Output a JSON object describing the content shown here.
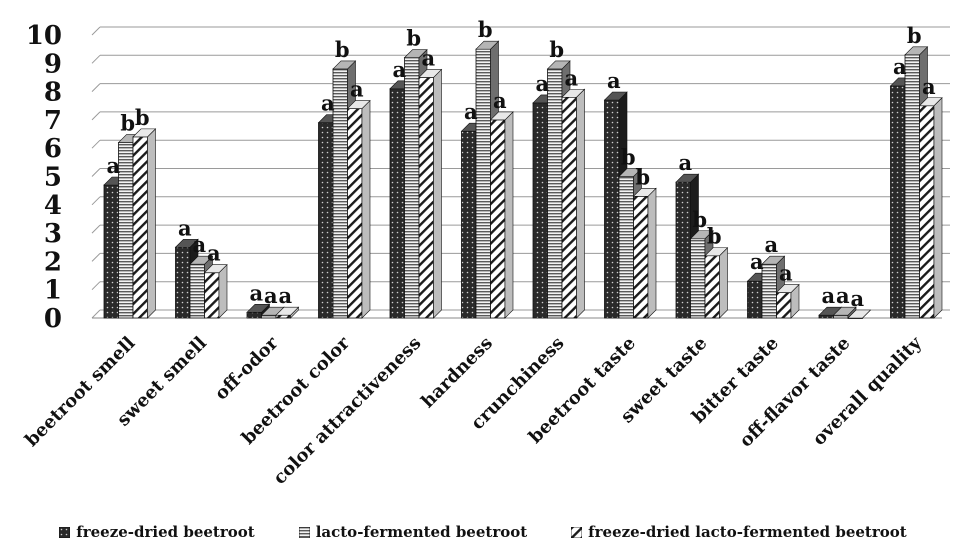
{
  "chart_data": {
    "type": "bar",
    "categories": [
      "beetroot smell",
      "sweet smell",
      "off-odor",
      "beetroot color",
      "color attractiveness",
      "hardness",
      "crunchiness",
      "beetroot taste",
      "sweet taste",
      "bitter taste",
      "off-flavor taste",
      "overall quality"
    ],
    "series": [
      {
        "name": "freeze-dried beetroot",
        "values": [
          4.7,
          2.5,
          0.2,
          6.9,
          8.1,
          6.6,
          7.6,
          7.7,
          4.8,
          1.3,
          0.1,
          8.2
        ],
        "letters": [
          "a",
          "a",
          "a",
          "a",
          "a",
          "a",
          "a",
          "a",
          "a",
          "a",
          "a",
          "a"
        ]
      },
      {
        "name": "lacto-fermented beetroot",
        "values": [
          6.2,
          1.9,
          0.1,
          8.8,
          9.2,
          9.5,
          8.8,
          5.0,
          2.8,
          1.9,
          0.1,
          9.3
        ],
        "letters": [
          "b",
          "a",
          "a",
          "b",
          "b",
          "b",
          "b",
          "b",
          "b",
          "a",
          "a",
          "b"
        ]
      },
      {
        "name": "freeze-dried lacto-fermented beetroot",
        "values": [
          6.4,
          1.6,
          0.1,
          7.4,
          8.5,
          7.0,
          7.8,
          4.3,
          2.2,
          0.9,
          0.0,
          7.5
        ],
        "letters": [
          "b",
          "a",
          "a",
          "a",
          "a",
          "a",
          "a",
          "b",
          "b",
          "a",
          "a",
          "a"
        ]
      }
    ],
    "title": "",
    "xlabel": "",
    "ylabel": "",
    "ylim": [
      0,
      10
    ],
    "yticks": [
      "0",
      "1",
      "2",
      "3",
      "4",
      "5",
      "6",
      "7",
      "8",
      "9",
      "10"
    ],
    "grid": true,
    "legend_position": "bottom",
    "colors": [
      "#2b2b2b",
      "#8a8a8a",
      "#ffffff"
    ]
  }
}
